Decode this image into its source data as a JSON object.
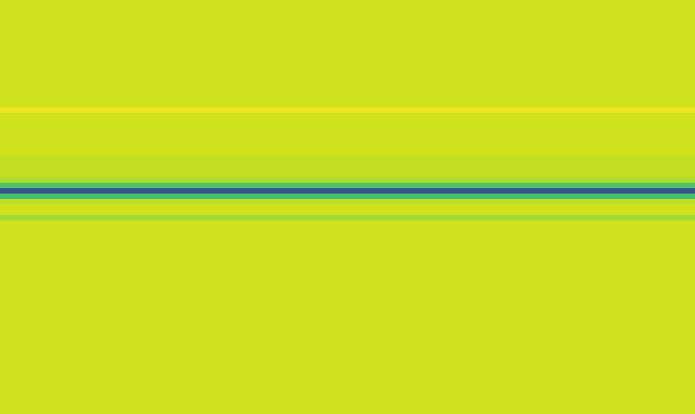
{
  "chart_data": {
    "type": "heatmap",
    "color": "Viridis",
    "tick_labels": false,
    "zlim": [
      0,
      1
    ],
    "cells": [
      [
        0.93
      ],
      [
        0.93
      ],
      [
        0.93
      ],
      [
        0.93
      ],
      [
        0.93
      ],
      [
        0.93
      ],
      [
        0.93
      ],
      [
        0.93
      ],
      [
        0.93
      ],
      [
        0.93
      ],
      [
        0.93
      ],
      [
        0.93
      ],
      [
        0.93
      ],
      [
        0.93
      ],
      [
        0.93
      ],
      [
        0.93
      ],
      [
        0.93
      ],
      [
        0.93
      ],
      [
        0.93
      ],
      [
        0.93
      ],
      [
        0.98
      ],
      [
        0.93
      ],
      [
        0.93
      ],
      [
        0.93
      ],
      [
        0.93
      ],
      [
        0.93
      ],
      [
        0.93
      ],
      [
        0.93
      ],
      [
        0.93
      ],
      [
        0.91
      ],
      [
        0.91
      ],
      [
        0.91
      ],
      [
        0.91
      ],
      [
        0.88
      ],
      [
        0.72
      ],
      [
        0.25
      ],
      [
        0.7
      ],
      [
        0.9
      ],
      [
        0.93
      ],
      [
        0.93
      ],
      [
        0.86
      ],
      [
        0.93
      ],
      [
        0.93
      ],
      [
        0.93
      ],
      [
        0.93
      ],
      [
        0.93
      ],
      [
        0.93
      ],
      [
        0.93
      ],
      [
        0.93
      ],
      [
        0.93
      ],
      [
        0.93
      ],
      [
        0.93
      ],
      [
        0.93
      ],
      [
        0.93
      ],
      [
        0.93
      ],
      [
        0.93
      ],
      [
        0.93
      ],
      [
        0.93
      ],
      [
        0.93
      ],
      [
        0.93
      ],
      [
        0.93
      ],
      [
        0.93
      ],
      [
        0.93
      ],
      [
        0.93
      ],
      [
        0.93
      ],
      [
        0.93
      ],
      [
        0.93
      ],
      [
        0.93
      ],
      [
        0.93
      ],
      [
        0.93
      ],
      [
        0.93
      ],
      [
        0.93
      ],
      [
        0.93
      ],
      [
        0.93
      ],
      [
        0.93
      ],
      [
        0.93
      ],
      [
        0.93
      ]
    ]
  }
}
